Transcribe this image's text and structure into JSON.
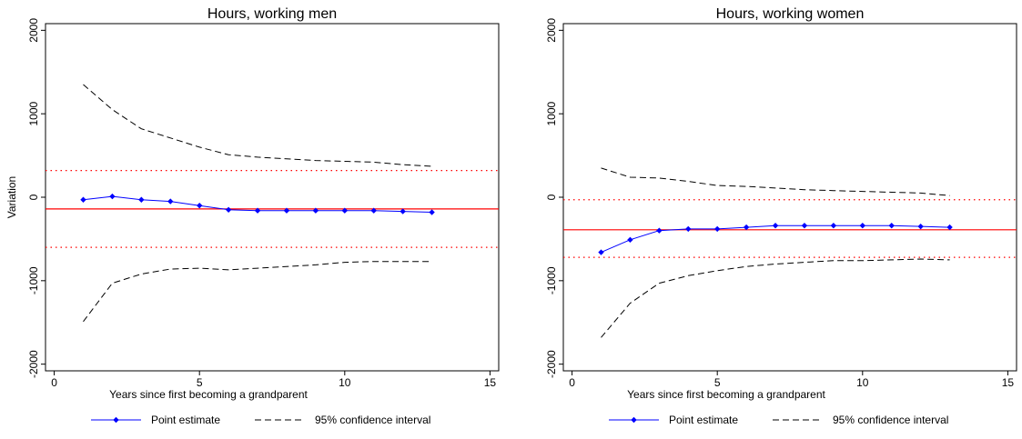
{
  "chart_data": [
    {
      "type": "line",
      "title": "Hours, working men",
      "xlabel": "Years since first becoming a grandparent",
      "ylabel": "Variation",
      "xlim": [
        -0.3,
        15.3
      ],
      "ylim": [
        -2080,
        2080
      ],
      "xticks": [
        0,
        5,
        10,
        15
      ],
      "yticks": [
        -2000,
        -1000,
        0,
        1000,
        2000
      ],
      "grid": false,
      "x": [
        1,
        2,
        3,
        4,
        5,
        6,
        7,
        8,
        9,
        10,
        11,
        12,
        13
      ],
      "series": [
        {
          "name": "Point estimate",
          "style": "solid-markers",
          "color": "#0000ff",
          "values": [
            -30,
            10,
            -30,
            -50,
            -100,
            -150,
            -160,
            -160,
            -160,
            -160,
            -160,
            -170,
            -180
          ]
        },
        {
          "name": "95% confidence interval",
          "style": "dashed",
          "color": "#000000",
          "values": [
            1350,
            1050,
            820,
            710,
            600,
            510,
            480,
            460,
            440,
            430,
            420,
            390,
            370
          ]
        },
        {
          "name": "95% confidence interval",
          "style": "dashed",
          "color": "#000000",
          "values": [
            -1490,
            -1030,
            -920,
            -860,
            -850,
            -870,
            -850,
            -830,
            -810,
            -780,
            -770,
            -770,
            -770
          ]
        }
      ],
      "reference_lines": [
        {
          "y": -140,
          "color": "#ff0000",
          "style": "solid"
        },
        {
          "y": 320,
          "color": "#ff0000",
          "style": "dotted"
        },
        {
          "y": -600,
          "color": "#ff0000",
          "style": "dotted"
        }
      ],
      "legend_position": "bottom"
    },
    {
      "type": "line",
      "title": "Hours, working women",
      "xlabel": "Years since first becoming a grandparent",
      "ylabel": "",
      "xlim": [
        -0.3,
        15.3
      ],
      "ylim": [
        -2080,
        2080
      ],
      "xticks": [
        0,
        5,
        10,
        15
      ],
      "yticks": [
        -2000,
        -1000,
        0,
        1000,
        2000
      ],
      "grid": false,
      "x": [
        1,
        2,
        3,
        4,
        5,
        6,
        7,
        8,
        9,
        10,
        11,
        12,
        13
      ],
      "series": [
        {
          "name": "Point estimate",
          "style": "solid-markers",
          "color": "#0000ff",
          "values": [
            -660,
            -510,
            -400,
            -380,
            -380,
            -360,
            -340,
            -340,
            -340,
            -340,
            -340,
            -350,
            -360
          ]
        },
        {
          "name": "95% confidence interval",
          "style": "dashed",
          "color": "#000000",
          "values": [
            350,
            240,
            230,
            190,
            140,
            130,
            110,
            90,
            80,
            70,
            60,
            50,
            20
          ]
        },
        {
          "name": "95% confidence interval",
          "style": "dashed",
          "color": "#000000",
          "values": [
            -1680,
            -1270,
            -1030,
            -940,
            -880,
            -830,
            -800,
            -780,
            -760,
            -760,
            -750,
            -740,
            -750
          ]
        }
      ],
      "reference_lines": [
        {
          "y": -390,
          "color": "#ff0000",
          "style": "solid"
        },
        {
          "y": -30,
          "color": "#ff0000",
          "style": "dotted"
        },
        {
          "y": -720,
          "color": "#ff0000",
          "style": "dotted"
        }
      ],
      "legend_position": "bottom"
    }
  ]
}
